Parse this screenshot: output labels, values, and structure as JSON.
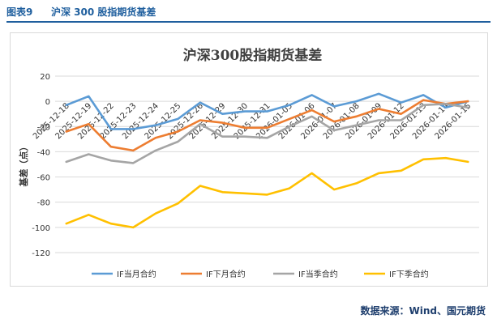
{
  "figure": {
    "label": "图表9",
    "title": "沪深 300 股指期货基差",
    "source": "数据来源：Wind、国元期货"
  },
  "chart_data": {
    "type": "line",
    "title": "沪深300股指期货基差",
    "xlabel": "",
    "ylabel": "基差（点）",
    "ylim": [
      -120,
      20
    ],
    "yticks": [
      20,
      0,
      -20,
      -40,
      -60,
      -80,
      -100,
      -120
    ],
    "grid": true,
    "legend_position": "bottom",
    "categories": [
      "2025-12-18",
      "2025-12-19",
      "2025-12-22",
      "2025-12-23",
      "2025-12-24",
      "2025-12-25",
      "2025-12-26",
      "2025-12-29",
      "2025-12-30",
      "2025-12-31",
      "2026-01-05",
      "2026-01-06",
      "2026-01-07",
      "2026-01-08",
      "2026-01-09",
      "2026-01-12",
      "2026-01-13",
      "2026-01-14",
      "2026-01-15"
    ],
    "series": [
      {
        "name": "IF当月合约",
        "color": "#5b9bd5",
        "values": [
          -3,
          4,
          -22,
          -22,
          -19,
          -14,
          -1,
          -10,
          -8,
          -8,
          -3,
          5,
          -4,
          0,
          6,
          -1,
          5,
          -5,
          0
        ]
      },
      {
        "name": "IF下月合约",
        "color": "#ed7d31",
        "values": [
          -24,
          -18,
          -36,
          -39,
          -29,
          -24,
          -15,
          -17,
          -21,
          -21,
          -14,
          -7,
          -16,
          -12,
          -6,
          -10,
          1,
          -2,
          0
        ]
      },
      {
        "name": "IF当季合约",
        "color": "#a5a5a5",
        "values": [
          -48,
          -42,
          -47,
          -49,
          -39,
          -32,
          -18,
          -28,
          -28,
          -29,
          -20,
          -12,
          -23,
          -19,
          -15,
          -15,
          -3,
          -2,
          -5
        ]
      },
      {
        "name": "IF下季合约",
        "color": "#ffc000",
        "values": [
          -97,
          -90,
          -97,
          -100,
          -89,
          -81,
          -67,
          -72,
          -73,
          -74,
          -69,
          -57,
          -70,
          -65,
          -57,
          -55,
          -46,
          -45,
          -48
        ]
      }
    ]
  }
}
